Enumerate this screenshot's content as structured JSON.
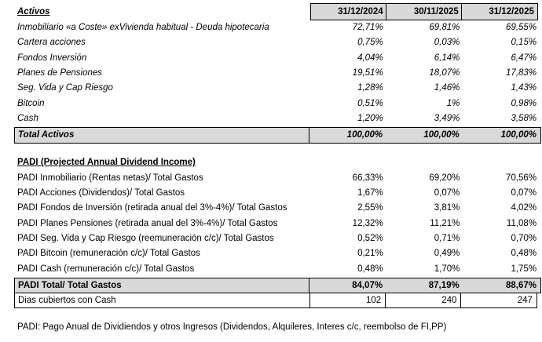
{
  "activos": {
    "title": "Activos",
    "col_headers": [
      "31/12/2024",
      "30/11/2025",
      "31/12/2025"
    ],
    "rows": [
      {
        "label": "Inmobiliario «a Coste» exVivienda habitual - Deuda hipotecaria",
        "v1": "72,71%",
        "v2": "69,81%",
        "v3": "69,55%"
      },
      {
        "label": "Cartera acciones",
        "v1": "0,75%",
        "v2": "0,03%",
        "v3": "0,15%"
      },
      {
        "label": "Fondos Inversión",
        "v1": "4,04%",
        "v2": "6,14%",
        "v3": "6,47%"
      },
      {
        "label": "Planes de Pensiones",
        "v1": "19,51%",
        "v2": "18,07%",
        "v3": "17,83%"
      },
      {
        "label": "Seg. Vida y Cap Riesgo",
        "v1": "1,28%",
        "v2": "1,46%",
        "v3": "1,43%"
      },
      {
        "label": "Bitcoin",
        "v1": "0,51%",
        "v2": "1%",
        "v3": "0,98%"
      },
      {
        "label": "Cash",
        "v1": "1,20%",
        "v2": "3,49%",
        "v3": "3,58%"
      }
    ],
    "total": {
      "label": "Total Activos",
      "v1": "100,00%",
      "v2": "100,00%",
      "v3": "100,00%"
    }
  },
  "padi": {
    "title": "PADI (Projected Annual Dividend Income)",
    "rows": [
      {
        "label": "PADI Inmobiliario (Rentas netas)/ Total Gastos",
        "v1": "66,33%",
        "v2": "69,20%",
        "v3": "70,56%"
      },
      {
        "label": "PADI Acciones (Dividendos)/ Total Gastos",
        "v1": "1,67%",
        "v2": "0,07%",
        "v3": "0,07%"
      },
      {
        "label": "PADI Fondos de Inversión (retirada anual del 3%-4%)/ Total Gastos",
        "v1": "2,55%",
        "v2": "3,81%",
        "v3": "4,02%"
      },
      {
        "label": "PADI Planes Pensiones (retirada anual del 3%-4%)/ Total Gastos",
        "v1": "12,32%",
        "v2": "11,21%",
        "v3": "11,08%"
      },
      {
        "label": "PADI Seg. Vida y Cap Riesgo (reemuneración c/c)/ Total Gastos",
        "v1": "0,52%",
        "v2": "0,71%",
        "v3": "0,70%"
      },
      {
        "label": "PADI Bitcoin (remuneración c/c)/ Total Gastos",
        "v1": "0,21%",
        "v2": "0,49%",
        "v3": "0,48%"
      },
      {
        "label": "PADI Cash (remuneración c/c)/ Total Gastos",
        "v1": "0,48%",
        "v2": "1,70%",
        "v3": "1,75%"
      }
    ],
    "total": {
      "label": "PADI Total/ Total Gastos",
      "v1": "84,07%",
      "v2": "87,19%",
      "v3": "88,67%"
    },
    "dias": {
      "label": "Dias cubiertos con Cash",
      "v1": "102",
      "v2": "240",
      "v3": "247"
    }
  },
  "footnote": "PADI: Pago Anual de Dividiendos y otros Ingresos (Dividendos, Alquileres, Interes c/c, reembolso de FI,PP)",
  "colors": {
    "header_bg": "#d9d9d9",
    "border": "#000000",
    "text": "#000000"
  }
}
